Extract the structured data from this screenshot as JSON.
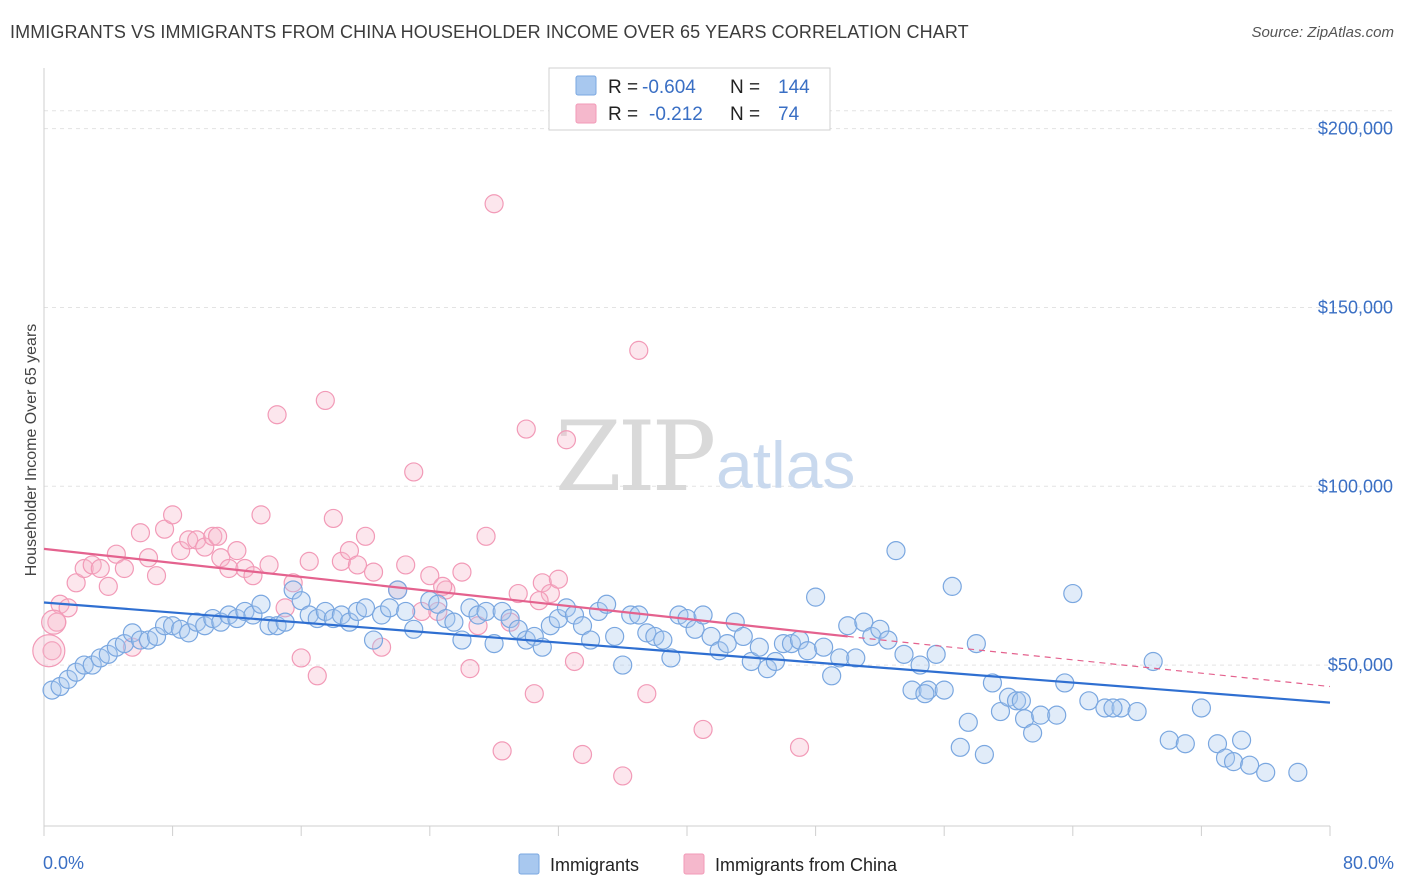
{
  "header": {
    "title": "IMMIGRANTS VS IMMIGRANTS FROM CHINA HOUSEHOLDER INCOME OVER 65 YEARS CORRELATION CHART",
    "source": "Source: ZipAtlas.com"
  },
  "watermark": {
    "zip": "ZIP",
    "atlas": "atlas"
  },
  "stats_legend": [
    {
      "r_label": "R =",
      "r_value": "-0.604",
      "n_label": "N =",
      "n_value": "144",
      "color": "#a8c8ef"
    },
    {
      "r_label": "R =",
      "r_value": "-0.212",
      "n_label": "N =",
      "n_value": "74",
      "color": "#f5b8cc"
    }
  ],
  "chart_data": {
    "type": "scatter",
    "title": "IMMIGRANTS VS IMMIGRANTS FROM CHINA HOUSEHOLDER INCOME OVER 65 YEARS CORRELATION CHART",
    "xlabel": "",
    "ylabel": "Householder Income Over 65 years",
    "xlim": [
      0,
      80
    ],
    "ylim": [
      5000,
      215000
    ],
    "x_tick_labels": [
      "0.0%",
      "80.0%"
    ],
    "y_ticks": [
      50000,
      100000,
      150000,
      200000
    ],
    "y_tick_labels": [
      "$50,000",
      "$100,000",
      "$150,000",
      "$200,000"
    ],
    "grid": true,
    "legend_position": "bottom",
    "colors": {
      "immigrants": "#7aa7e0",
      "immigrants_line": "#2f6fd1",
      "china": "#f29ab7",
      "china_line": "#e4628e"
    },
    "series": [
      {
        "name": "Immigrants",
        "r": -0.604,
        "n": 144,
        "trend": {
          "x": [
            0,
            80
          ],
          "y": [
            67500,
            39500
          ]
        },
        "points": [
          [
            0.5,
            43000
          ],
          [
            1,
            44000
          ],
          [
            1.5,
            46000
          ],
          [
            2,
            48000
          ],
          [
            2.5,
            50000
          ],
          [
            3,
            50000
          ],
          [
            3.5,
            52000
          ],
          [
            4,
            53000
          ],
          [
            4.5,
            55000
          ],
          [
            5,
            56000
          ],
          [
            5.5,
            59000
          ],
          [
            6,
            57000
          ],
          [
            6.5,
            57000
          ],
          [
            7,
            58000
          ],
          [
            7.5,
            61000
          ],
          [
            8,
            61000
          ],
          [
            8.5,
            60000
          ],
          [
            9,
            59000
          ],
          [
            9.5,
            62000
          ],
          [
            10,
            61000
          ],
          [
            10.5,
            63000
          ],
          [
            11,
            62000
          ],
          [
            11.5,
            64000
          ],
          [
            12,
            63000
          ],
          [
            12.5,
            65000
          ],
          [
            13,
            64000
          ],
          [
            13.5,
            67000
          ],
          [
            14,
            61000
          ],
          [
            14.5,
            61000
          ],
          [
            15,
            62000
          ],
          [
            15.5,
            71000
          ],
          [
            16,
            68000
          ],
          [
            16.5,
            64000
          ],
          [
            17,
            63000
          ],
          [
            17.5,
            65000
          ],
          [
            18,
            63000
          ],
          [
            18.5,
            64000
          ],
          [
            19,
            62000
          ],
          [
            19.5,
            65000
          ],
          [
            20,
            66000
          ],
          [
            20.5,
            57000
          ],
          [
            21,
            64000
          ],
          [
            21.5,
            66000
          ],
          [
            22,
            71000
          ],
          [
            22.5,
            65000
          ],
          [
            23,
            60000
          ],
          [
            24,
            68000
          ],
          [
            24.5,
            67000
          ],
          [
            25,
            63000
          ],
          [
            25.5,
            62000
          ],
          [
            26,
            57000
          ],
          [
            26.5,
            66000
          ],
          [
            27,
            64000
          ],
          [
            27.5,
            65000
          ],
          [
            28,
            56000
          ],
          [
            28.5,
            65000
          ],
          [
            29,
            63000
          ],
          [
            29.5,
            60000
          ],
          [
            30,
            57000
          ],
          [
            30.5,
            58000
          ],
          [
            31,
            55000
          ],
          [
            31.5,
            61000
          ],
          [
            32,
            63000
          ],
          [
            32.5,
            66000
          ],
          [
            33,
            64000
          ],
          [
            33.5,
            61000
          ],
          [
            34,
            57000
          ],
          [
            34.5,
            65000
          ],
          [
            35,
            67000
          ],
          [
            35.5,
            58000
          ],
          [
            36,
            50000
          ],
          [
            36.5,
            64000
          ],
          [
            37,
            64000
          ],
          [
            37.5,
            59000
          ],
          [
            38,
            58000
          ],
          [
            38.5,
            57000
          ],
          [
            39,
            52000
          ],
          [
            39.5,
            64000
          ],
          [
            40,
            63000
          ],
          [
            40.5,
            60000
          ],
          [
            41,
            64000
          ],
          [
            41.5,
            58000
          ],
          [
            42,
            54000
          ],
          [
            42.5,
            56000
          ],
          [
            43,
            62000
          ],
          [
            43.5,
            58000
          ],
          [
            44,
            51000
          ],
          [
            44.5,
            55000
          ],
          [
            45,
            49000
          ],
          [
            45.5,
            51000
          ],
          [
            46,
            56000
          ],
          [
            46.5,
            56000
          ],
          [
            47,
            57000
          ],
          [
            47.5,
            54000
          ],
          [
            48,
            69000
          ],
          [
            48.5,
            55000
          ],
          [
            49,
            47000
          ],
          [
            49.5,
            52000
          ],
          [
            50,
            61000
          ],
          [
            50.5,
            52000
          ],
          [
            51,
            62000
          ],
          [
            51.5,
            58000
          ],
          [
            52,
            60000
          ],
          [
            52.5,
            57000
          ],
          [
            53,
            82000
          ],
          [
            53.5,
            53000
          ],
          [
            54,
            43000
          ],
          [
            54.5,
            50000
          ],
          [
            55,
            43000
          ],
          [
            55.5,
            53000
          ],
          [
            56,
            43000
          ],
          [
            56.5,
            72000
          ],
          [
            57,
            27000
          ],
          [
            57.5,
            34000
          ],
          [
            58,
            56000
          ],
          [
            58.5,
            25000
          ],
          [
            59,
            45000
          ],
          [
            59.5,
            37000
          ],
          [
            60,
            41000
          ],
          [
            60.5,
            40000
          ],
          [
            61,
            35000
          ],
          [
            61.5,
            31000
          ],
          [
            62,
            36000
          ],
          [
            63,
            36000
          ],
          [
            63.5,
            45000
          ],
          [
            64,
            70000
          ],
          [
            65,
            40000
          ],
          [
            66,
            38000
          ],
          [
            67,
            38000
          ],
          [
            68,
            37000
          ],
          [
            69,
            51000
          ],
          [
            70,
            29000
          ],
          [
            71,
            28000
          ],
          [
            72,
            38000
          ],
          [
            73,
            28000
          ],
          [
            73.5,
            24000
          ],
          [
            74,
            23000
          ],
          [
            74.5,
            29000
          ],
          [
            75,
            22000
          ],
          [
            76,
            20000
          ],
          [
            78,
            20000
          ],
          [
            60.8,
            40000
          ],
          [
            66.5,
            38000
          ],
          [
            54.8,
            42000
          ]
        ]
      },
      {
        "name": "Immigrants from China",
        "r": -0.212,
        "n": 74,
        "trend": {
          "x": [
            0,
            50
          ],
          "y": [
            82500,
            58000
          ]
        },
        "trend_dashed": {
          "x": [
            50,
            80
          ],
          "y": [
            58000,
            44000
          ]
        },
        "points": [
          [
            0.5,
            54000
          ],
          [
            0.8,
            62000
          ],
          [
            1,
            67000
          ],
          [
            1.5,
            66000
          ],
          [
            2,
            73000
          ],
          [
            2.5,
            77000
          ],
          [
            3,
            78000
          ],
          [
            3.5,
            77000
          ],
          [
            4,
            72000
          ],
          [
            4.5,
            81000
          ],
          [
            5,
            77000
          ],
          [
            5.5,
            55000
          ],
          [
            6,
            87000
          ],
          [
            6.5,
            80000
          ],
          [
            7,
            75000
          ],
          [
            7.5,
            88000
          ],
          [
            8,
            92000
          ],
          [
            8.5,
            82000
          ],
          [
            9,
            85000
          ],
          [
            9.5,
            85000
          ],
          [
            10,
            83000
          ],
          [
            10.5,
            86000
          ],
          [
            11,
            80000
          ],
          [
            11.5,
            77000
          ],
          [
            12,
            82000
          ],
          [
            12.5,
            77000
          ],
          [
            13,
            75000
          ],
          [
            13.5,
            92000
          ],
          [
            14,
            78000
          ],
          [
            14.5,
            120000
          ],
          [
            15,
            66000
          ],
          [
            15.5,
            73000
          ],
          [
            16,
            52000
          ],
          [
            16.5,
            79000
          ],
          [
            17,
            47000
          ],
          [
            17.5,
            124000
          ],
          [
            18,
            91000
          ],
          [
            18.5,
            79000
          ],
          [
            19,
            82000
          ],
          [
            19.5,
            78000
          ],
          [
            20,
            86000
          ],
          [
            20.5,
            76000
          ],
          [
            21,
            55000
          ],
          [
            22,
            71000
          ],
          [
            22.5,
            78000
          ],
          [
            23,
            104000
          ],
          [
            23.5,
            65000
          ],
          [
            24,
            75000
          ],
          [
            24.5,
            65000
          ],
          [
            25,
            71000
          ],
          [
            26,
            76000
          ],
          [
            26.5,
            49000
          ],
          [
            27,
            61000
          ],
          [
            27.5,
            86000
          ],
          [
            28,
            179000
          ],
          [
            28.5,
            26000
          ],
          [
            29,
            62000
          ],
          [
            29.5,
            70000
          ],
          [
            30,
            116000
          ],
          [
            30.5,
            42000
          ],
          [
            31,
            73000
          ],
          [
            31.5,
            70000
          ],
          [
            32,
            74000
          ],
          [
            32.5,
            113000
          ],
          [
            33,
            51000
          ],
          [
            33.5,
            25000
          ],
          [
            36,
            19000
          ],
          [
            37,
            138000
          ],
          [
            37.5,
            42000
          ],
          [
            41,
            32000
          ],
          [
            47,
            27000
          ],
          [
            30.8,
            68000
          ],
          [
            24.8,
            72000
          ],
          [
            10.8,
            86000
          ]
        ]
      }
    ]
  },
  "bottom_legend": [
    {
      "label": "Immigrants",
      "color": "#a8c8ef"
    },
    {
      "label": "Immigrants from China",
      "color": "#f5b8cc"
    }
  ]
}
